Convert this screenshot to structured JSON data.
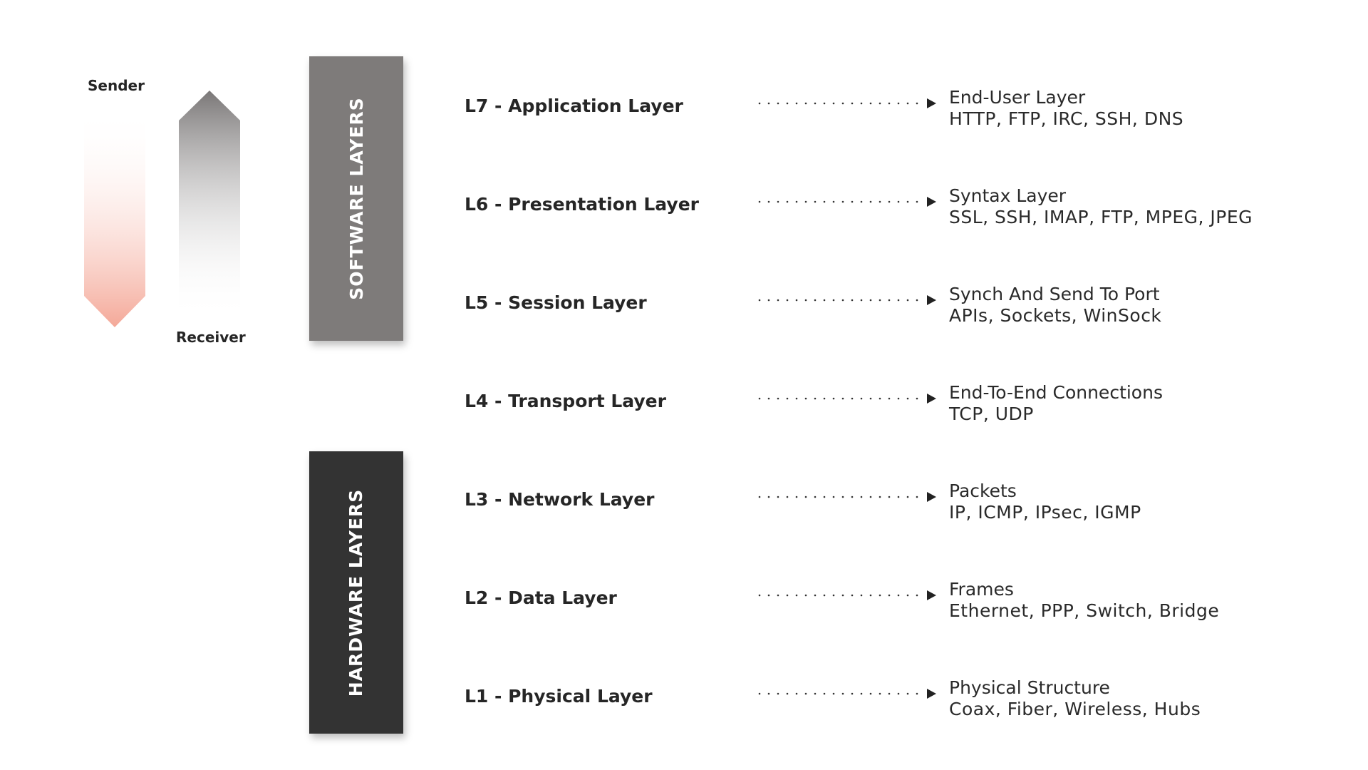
{
  "flow": {
    "sender_label": "Sender",
    "receiver_label": "Receiver",
    "sender_color": "#f4a898",
    "receiver_color": "#7a7777"
  },
  "groups": {
    "software": {
      "label": "SOFTWARE LAYERS",
      "color": "#7e7b7a"
    },
    "hardware": {
      "label": "HARDWARE LAYERS",
      "color": "#333333"
    }
  },
  "layers": [
    {
      "name": "L7 - Application Layer",
      "title": "End-User Layer",
      "protocols": "HTTP, FTP, IRC, SSH, DNS"
    },
    {
      "name": "L6 - Presentation Layer",
      "title": "Syntax Layer",
      "protocols": "SSL, SSH, IMAP, FTP, MPEG, JPEG"
    },
    {
      "name": "L5 - Session Layer",
      "title": "Synch And Send To Port",
      "protocols": "APIs, Sockets, WinSock"
    },
    {
      "name": "L4 - Transport Layer",
      "title": "End-To-End Connections",
      "protocols": "TCP, UDP"
    },
    {
      "name": "L3 - Network Layer",
      "title": "Packets",
      "protocols": "IP, ICMP, IPsec, IGMP"
    },
    {
      "name": "L2 - Data Layer",
      "title": "Frames",
      "protocols": "Ethernet, PPP, Switch, Bridge"
    },
    {
      "name": "L1 - Physical Layer",
      "title": "Physical Structure",
      "protocols": "Coax, Fiber, Wireless, Hubs"
    }
  ]
}
